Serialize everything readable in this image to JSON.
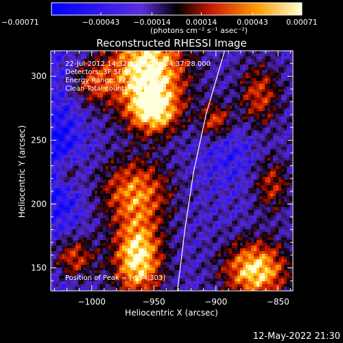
{
  "chart_data": {
    "type": "heatmap",
    "title": "Reconstructed RHESSI Image",
    "xlabel": "Heliocentric X (arcsec)",
    "ylabel": "Heliocentric Y (arcsec)",
    "xlim": [
      -1033,
      -838
    ],
    "ylim": [
      132,
      320
    ],
    "x_ticks": [
      -1000,
      -950,
      -900,
      -850
    ],
    "x_tick_labels": [
      "−1000",
      "−950",
      "−900",
      "−850"
    ],
    "y_ticks": [
      150,
      200,
      250,
      300
    ],
    "y_tick_labels": [
      "150",
      "200",
      "250",
      "300"
    ],
    "colorbar": {
      "range": [
        -0.00071,
        0.00071
      ],
      "ticks": [
        -0.00071,
        -0.00043,
        -0.00014,
        0.00014,
        0.00043,
        0.00071
      ],
      "tick_labels": [
        "−0.00071",
        "−0.00043",
        "−0.00014",
        "0.00014",
        "0.00043",
        "0.00071"
      ],
      "units": "(photons cm⁻² s⁻¹ asec⁻²)"
    },
    "annotations": [
      "22-Jul-2012 14:32:00.000 to 14:37:28.000",
      "Detectors: 3F 5F 6F 7F 8F 9F",
      "Energy Range: 12.0 - 25.0 keV",
      "Clean    Total counts: 3.92E+03"
    ],
    "peak_label": "Position of Peak = [-934,303]",
    "peak_position": [
      -934,
      303
    ],
    "limb_curve": [
      [
        -931,
        132
      ],
      [
        -925,
        180
      ],
      [
        -918,
        225
      ],
      [
        -908,
        270
      ],
      [
        -893,
        320
      ]
    ],
    "bright_sources": [
      {
        "x": -955,
        "y": 305,
        "intensity": 1.0,
        "sx": 22,
        "sy": 25
      },
      {
        "x": -950,
        "y": 272,
        "intensity": 0.7,
        "sx": 14,
        "sy": 12
      },
      {
        "x": -963,
        "y": 158,
        "intensity": 0.95,
        "sx": 14,
        "sy": 22
      },
      {
        "x": -868,
        "y": 148,
        "intensity": 0.9,
        "sx": 18,
        "sy": 16
      },
      {
        "x": -1015,
        "y": 158,
        "intensity": 0.6,
        "sx": 12,
        "sy": 12
      },
      {
        "x": -965,
        "y": 210,
        "intensity": 0.65,
        "sx": 20,
        "sy": 18
      },
      {
        "x": -900,
        "y": 265,
        "intensity": 0.55,
        "sx": 9,
        "sy": 10
      },
      {
        "x": -865,
        "y": 285,
        "intensity": 0.5,
        "sx": 12,
        "sy": 18
      },
      {
        "x": -1000,
        "y": 295,
        "intensity": 0.45,
        "sx": 12,
        "sy": 12
      },
      {
        "x": -855,
        "y": 215,
        "intensity": 0.45,
        "sx": 10,
        "sy": 15
      },
      {
        "x": -1020,
        "y": 225,
        "intensity": 0.45,
        "sx": 8,
        "sy": 10
      }
    ],
    "dark_regions": [
      {
        "x": -1025,
        "y": 230,
        "intensity": 0.5,
        "sx": 12,
        "sy": 30
      },
      {
        "x": -890,
        "y": 240,
        "intensity": 0.35,
        "sx": 16,
        "sy": 18
      }
    ]
  },
  "timestamp": "12-May-2022 21:30"
}
